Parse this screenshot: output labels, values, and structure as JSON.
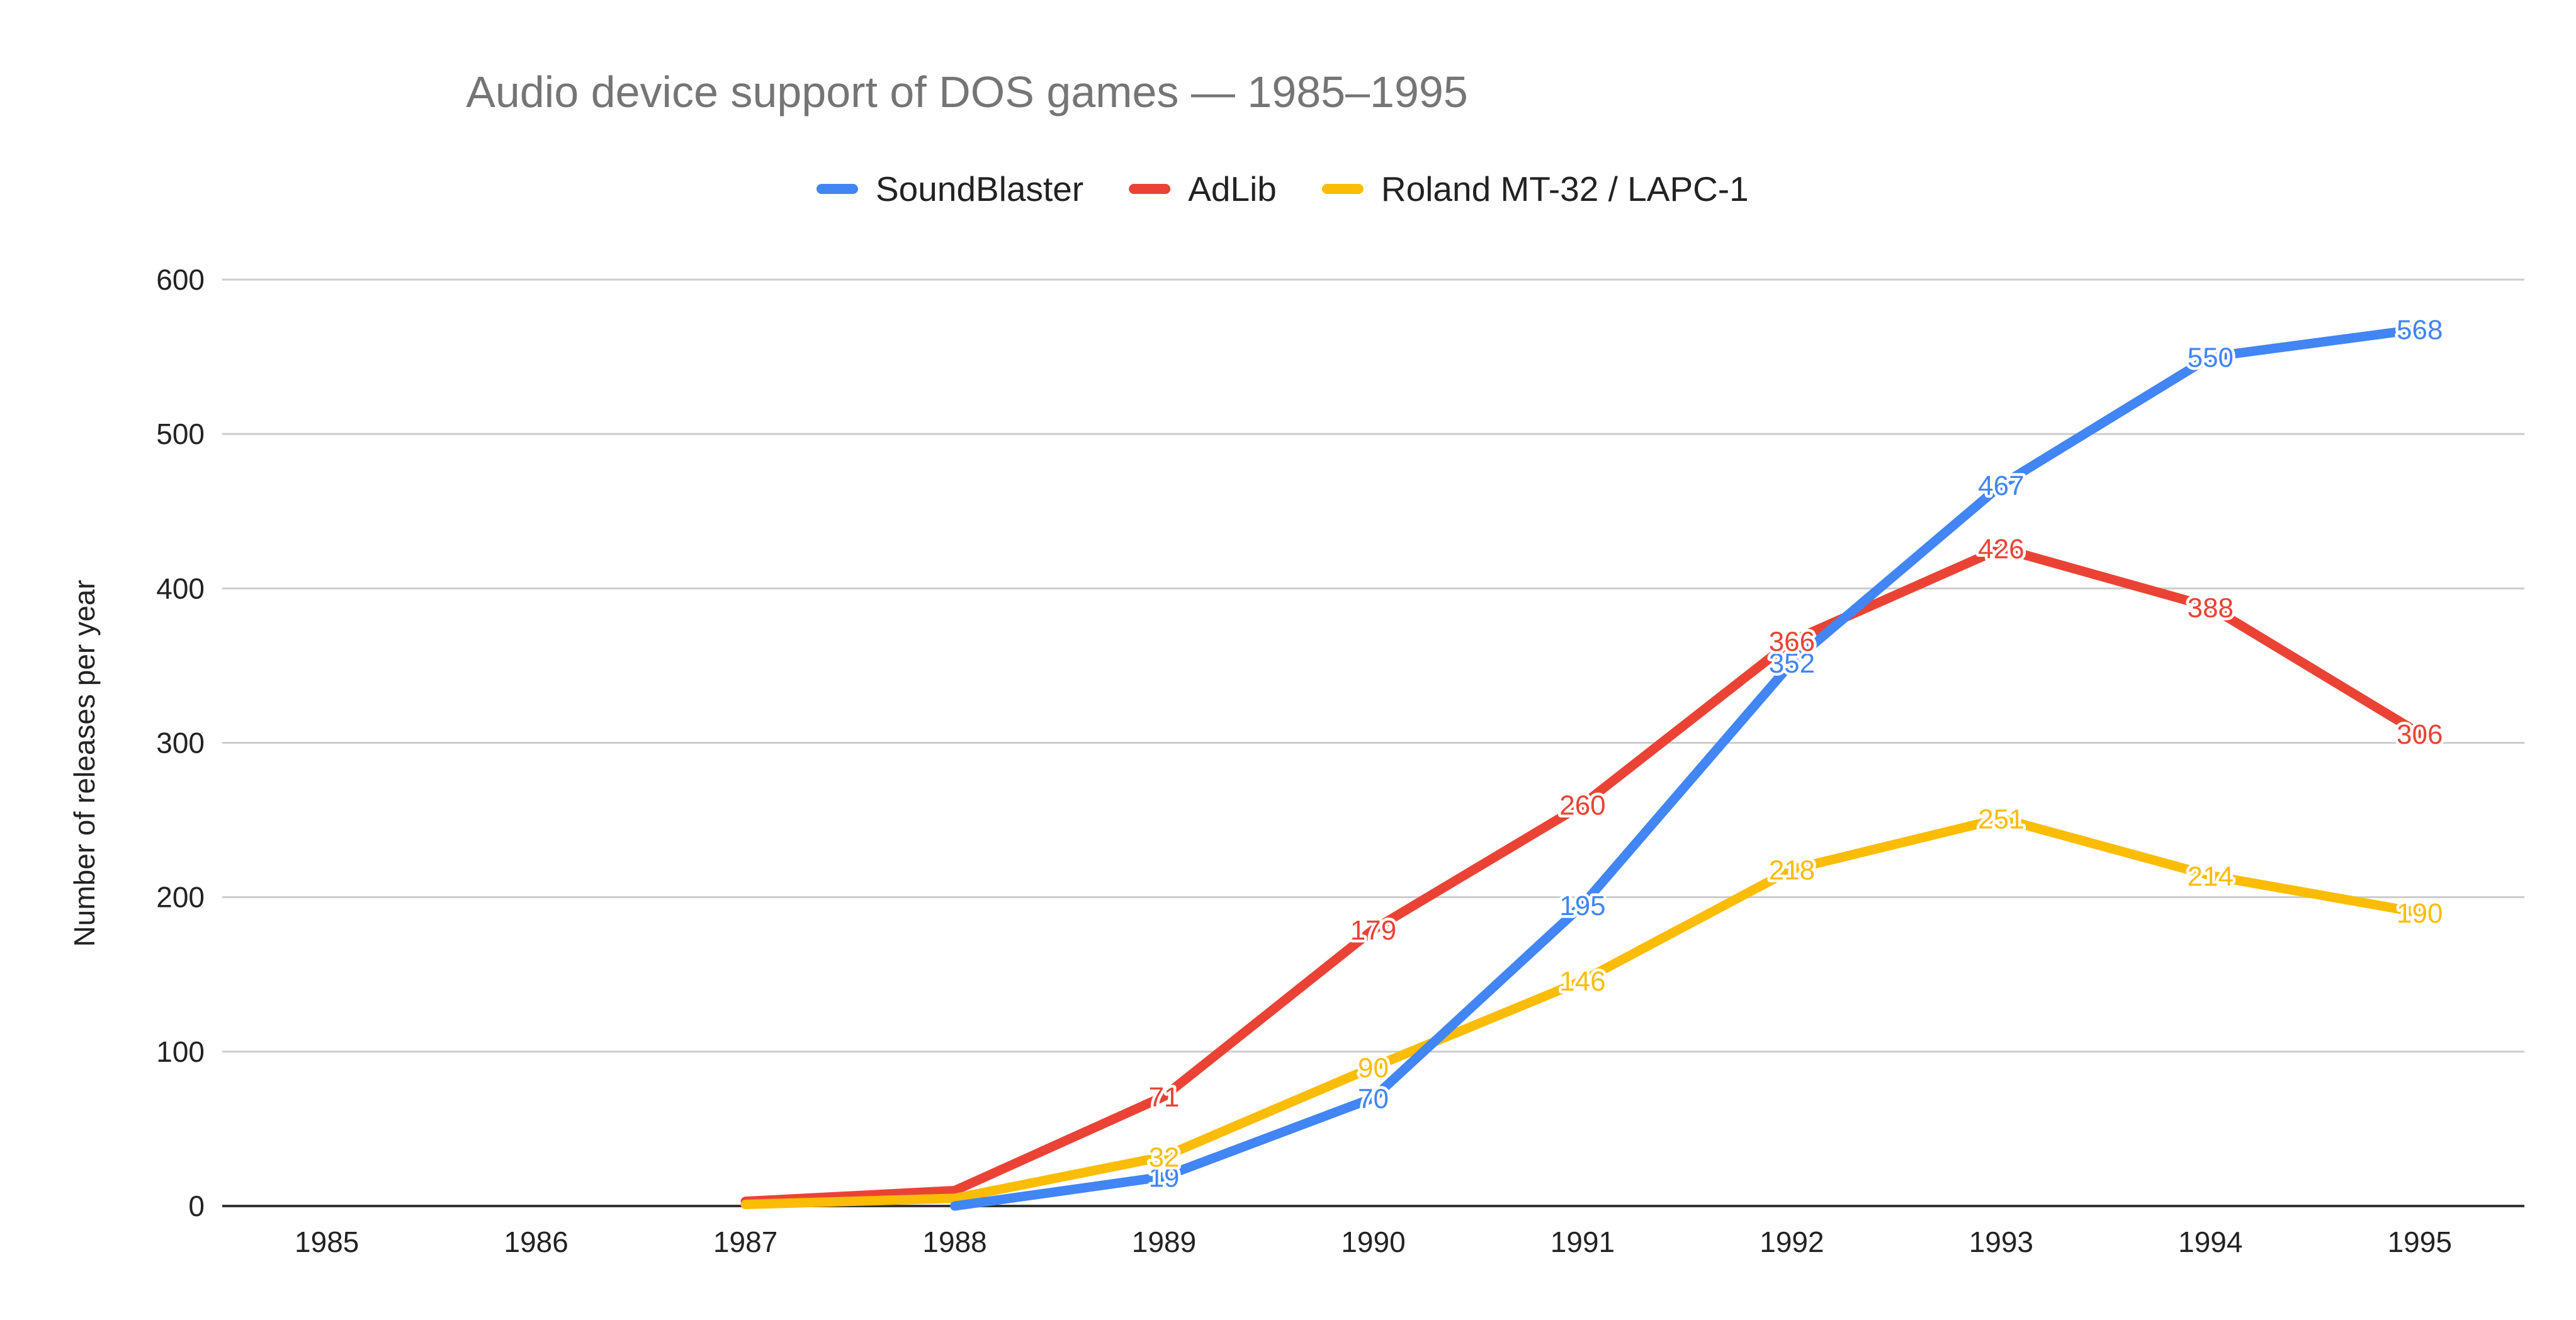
{
  "chart_data": {
    "type": "line",
    "title": "Audio device support of DOS games — 1985–1995",
    "xlabel": "",
    "ylabel": "Number of releases per year",
    "x": [
      "1985",
      "1986",
      "1987",
      "1988",
      "1989",
      "1990",
      "1991",
      "1992",
      "1993",
      "1994",
      "1995"
    ],
    "ylim": [
      0,
      600
    ],
    "yticks": [
      0,
      100,
      200,
      300,
      400,
      500,
      600
    ],
    "grid": true,
    "legend_position": "top",
    "series": [
      {
        "name": "SoundBlaster",
        "color": "#4285f4",
        "values": [
          null,
          null,
          null,
          0,
          19,
          70,
          195,
          352,
          467,
          550,
          568
        ],
        "labels": [
          null,
          null,
          null,
          null,
          "19",
          "70",
          "195",
          "352",
          "467",
          "550",
          "568"
        ]
      },
      {
        "name": "AdLib",
        "color": "#ea4335",
        "values": [
          null,
          null,
          3,
          10,
          71,
          179,
          260,
          366,
          426,
          388,
          306
        ],
        "labels": [
          null,
          null,
          null,
          null,
          "71",
          "179",
          "260",
          "366",
          "426",
          "388",
          "306"
        ]
      },
      {
        "name": "Roland MT-32 / LAPC-1",
        "color": "#fbbc04",
        "values": [
          null,
          null,
          1,
          5,
          32,
          90,
          146,
          218,
          251,
          214,
          190
        ],
        "labels": [
          null,
          null,
          null,
          null,
          "32",
          "90",
          "146",
          "218",
          "251",
          "214",
          "190"
        ]
      }
    ]
  }
}
